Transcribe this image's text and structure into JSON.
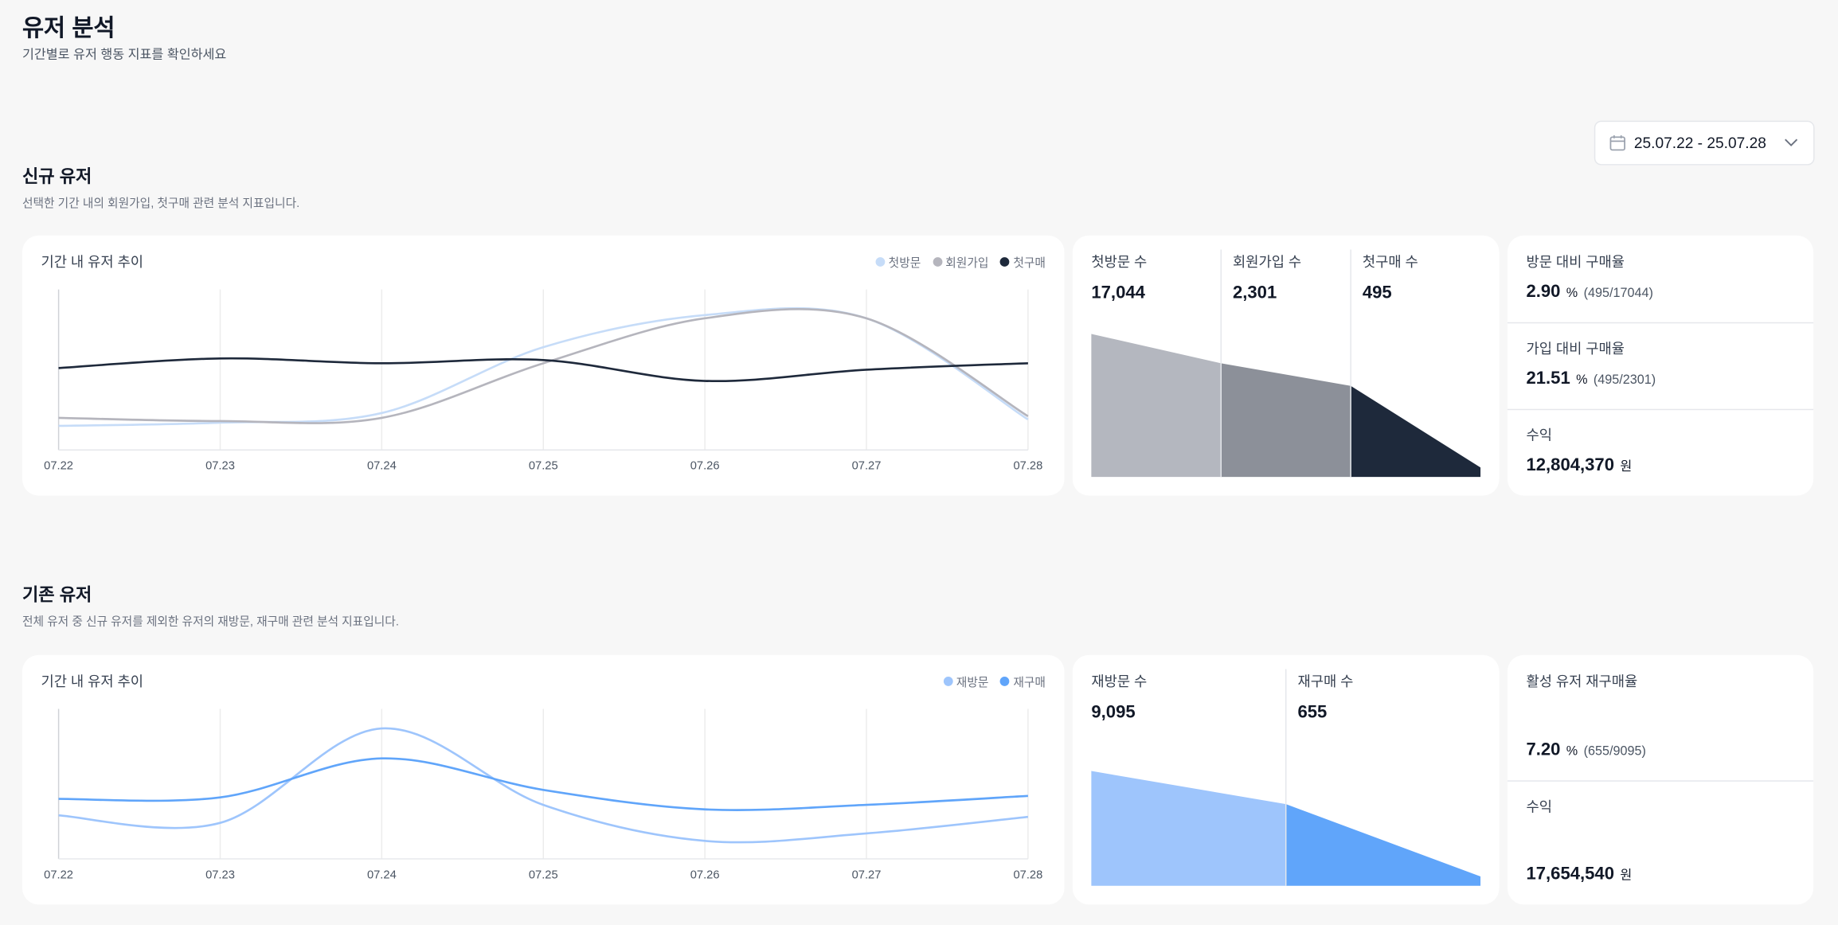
{
  "header": {
    "title": "유저 분석",
    "subtitle": "기간별로 유저 행동 지표를 확인하세요"
  },
  "date_range": "25.07.22 - 25.07.28",
  "sections": [
    {
      "title": "신규 유저",
      "description": "선택한 기간 내의 회원가입, 첫구매 관련 분석 지표입니다.",
      "chart_title": "기간 내 유저 추이",
      "chart_data": {
        "type": "line",
        "x": [
          "07.22",
          "07.23",
          "07.24",
          "07.25",
          "07.26",
          "07.27",
          "07.28"
        ],
        "ylim": [
          0,
          100
        ],
        "grid": true,
        "legend": "top-right",
        "series": [
          {
            "name": "첫방문",
            "color": "#c6dcf8",
            "values": [
              15,
              17,
              23,
              64,
              84,
              82,
              19
            ]
          },
          {
            "name": "회원가입",
            "color": "#b5b5bd",
            "values": [
              20,
              18,
              20,
              54,
              82,
              82,
              21
            ]
          },
          {
            "name": "첫구매",
            "color": "#1e293b",
            "values": [
              51,
              57,
              54,
              56,
              43,
              50,
              54
            ]
          }
        ]
      },
      "funnel": {
        "scale": "log",
        "items": [
          {
            "label": "첫방문 수",
            "value": 17044,
            "value_label": "17,044",
            "color": "#b4b7bf"
          },
          {
            "label": "회원가입 수",
            "value": 2301,
            "value_label": "2,301",
            "color": "#8c9099"
          },
          {
            "label": "첫구매 수",
            "value": 495,
            "value_label": "495",
            "color": "#1e293b"
          }
        ]
      },
      "stats": [
        {
          "label": "방문 대비 구매율",
          "value": "2.90",
          "unit": "%",
          "detail": "(495/17044)"
        },
        {
          "label": "가입 대비 구매율",
          "value": "21.51",
          "unit": "%",
          "detail": "(495/2301)"
        },
        {
          "label": "수익",
          "value": "12,804,370",
          "unit": "원"
        }
      ]
    },
    {
      "title": "기존 유저",
      "description": "전체 유저 중 신규 유저를 제외한 유저의 재방문, 재구매 관련 분석 지표입니다.",
      "chart_title": "기간 내 유저 추이",
      "chart_data": {
        "type": "line",
        "x": [
          "07.22",
          "07.23",
          "07.24",
          "07.25",
          "07.26",
          "07.27",
          "07.28"
        ],
        "ylim": [
          0,
          100
        ],
        "grid": true,
        "legend": "top-right",
        "series": [
          {
            "name": "재방문",
            "color": "#9ec5fc",
            "values": [
              29,
              24,
              87,
              36,
              12,
              17,
              28
            ]
          },
          {
            "name": "재구매",
            "color": "#60a5fa",
            "values": [
              40,
              41,
              67,
              46,
              33,
              36,
              42
            ]
          }
        ]
      },
      "funnel": {
        "scale": "log",
        "items": [
          {
            "label": "재방문 수",
            "value": 9095,
            "value_label": "9,095",
            "color": "#9ec5fc"
          },
          {
            "label": "재구매 수",
            "value": 655,
            "value_label": "655",
            "color": "#60a5fa"
          }
        ]
      },
      "stats": [
        {
          "label": "활성 유저 재구매율",
          "value": "7.20",
          "unit": "%",
          "detail": "(655/9095)"
        },
        {
          "label": "수익",
          "value": "17,654,540",
          "unit": "원"
        }
      ]
    }
  ]
}
